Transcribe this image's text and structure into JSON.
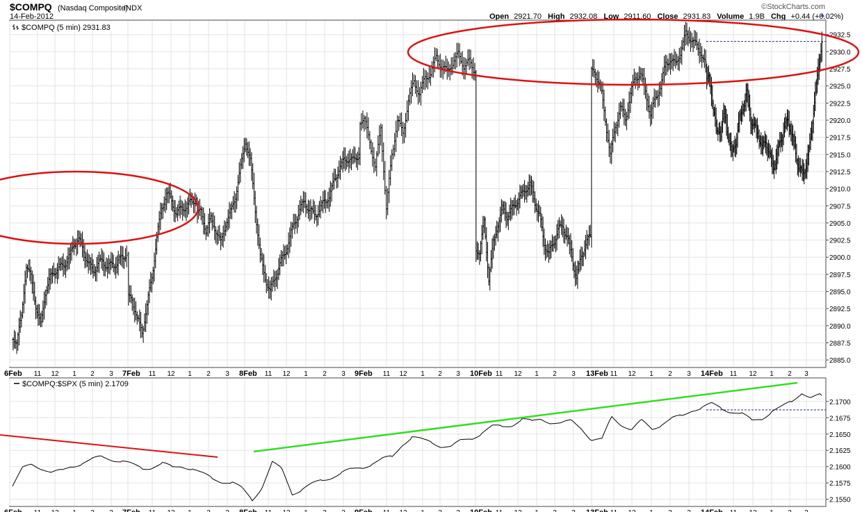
{
  "header": {
    "symbol": "$COMPQ",
    "name": "(Nasdaq Composite)",
    "exchange": "INDX",
    "date": "14-Feb-2012",
    "watermark": "©StockCharts.com",
    "open_label": "Open",
    "open_value": "2921.70",
    "high_label": "High",
    "high_value": "2932.08",
    "low_label": "Low",
    "low_value": "2911.60",
    "close_label": "Close",
    "close_value": "2931.83",
    "volume_label": "Volume",
    "volume_value": "1.9B",
    "chg_label": "Chg",
    "chg_value": "+0.44 (+0.02%)"
  },
  "colors": {
    "price_bars": "#000000",
    "grid": "#e3e3e3",
    "annotation_red": "#dd1111",
    "annotation_green": "#33dd22",
    "ref_line": "#1a2a88"
  },
  "chart_data": [
    {
      "type": "ohlc",
      "legend": "$COMPQ (5 min) 2931.83",
      "ylim": [
        2884,
        2934.5
      ],
      "yticks": [
        2885.0,
        2887.5,
        2890.0,
        2892.5,
        2895.0,
        2897.5,
        2900.0,
        2902.5,
        2905.0,
        2907.5,
        2910.0,
        2912.5,
        2915.0,
        2917.5,
        2920.0,
        2922.5,
        2925.0,
        2927.5,
        2930.0,
        2932.5
      ],
      "ytick_labels": [
        "2885.0",
        "2887.5",
        "2890.0",
        "2892.5",
        "2895.0",
        "2897.5",
        "2900.0",
        "2902.5",
        "2905.0",
        "2907.5",
        "2910.0",
        "2912.5",
        "2915.0",
        "2917.5",
        "2920.0",
        "2922.5",
        "2925.0",
        "2927.5",
        "2930.0",
        "2932.5"
      ],
      "xticks": [
        "6Feb",
        "11",
        "12",
        "1",
        "2",
        "3",
        "7Feb",
        "11",
        "12",
        "1",
        "2",
        "3",
        "8Feb",
        "11",
        "12",
        "1",
        "2",
        "3",
        "9Feb",
        "11",
        "12",
        "1",
        "2",
        "3",
        "10Feb",
        "11",
        "12",
        "1",
        "2",
        "3",
        "13Feb",
        "11",
        "12",
        "1",
        "2",
        "3",
        "14Feb",
        "11",
        "12",
        "1",
        "2",
        "3"
      ],
      "sessions": [
        {
          "day": "6Feb",
          "closes": [
            2888,
            2891,
            2899,
            2897,
            2893,
            2890,
            2895,
            2897,
            2898,
            2898.5,
            2899,
            2900,
            2902,
            2902.5,
            2901,
            2899,
            2898,
            2899,
            2899.5,
            2898.5,
            2899,
            2899,
            2900,
            2900.5
          ]
        },
        {
          "day": "7Feb",
          "closes": [
            2894,
            2891,
            2889,
            2893,
            2897,
            2903,
            2907,
            2909.5,
            2908,
            2906.5,
            2907,
            2907.5,
            2908,
            2908.5
          ]
        },
        {
          "day": "8Feb",
          "closes": [
            2906.5,
            2904,
            2905.5,
            2904,
            2902,
            2905,
            2906.5,
            2909,
            2913,
            2917,
            2914,
            2907,
            2900,
            2897,
            2895,
            2897,
            2899,
            2900.5,
            2903,
            2905,
            2907,
            2908,
            2907,
            2906,
            2907,
            2908,
            2909,
            2911,
            2913,
            2914,
            2914.5,
            2914,
            2915
          ]
        },
        {
          "day": "9Feb",
          "closes": [
            2920,
            2917,
            2913,
            2919,
            2907,
            2915,
            2920,
            2918,
            2923,
            2925.5,
            2924,
            2926,
            2927,
            2929,
            2928,
            2927,
            2928.5,
            2929.5,
            2928,
            2928.5,
            2927
          ]
        },
        {
          "day": "10Feb",
          "closes": [
            2901,
            2905,
            2897,
            2902,
            2905,
            2907,
            2906,
            2907,
            2908,
            2909,
            2910,
            2910.5,
            2908,
            2906,
            2902,
            2900.5,
            2902,
            2904,
            2904.5,
            2903,
            2900,
            2897,
            2900,
            2902,
            2903
          ]
        },
        {
          "day": "13Feb",
          "closes": [
            2927,
            2925,
            2920,
            2915,
            2919,
            2922,
            2920,
            2924,
            2926,
            2927,
            2924,
            2921,
            2923,
            2925,
            2928,
            2929,
            2928,
            2930,
            2932.5,
            2932,
            2931,
            2930,
            2928
          ]
        },
        {
          "day": "14Feb",
          "closes": [
            2926,
            2922,
            2918,
            2919,
            2921,
            2918,
            2915,
            2917,
            2920,
            2922,
            2924,
            2920,
            2919,
            2918,
            2916,
            2917,
            2915,
            2913,
            2915,
            2917,
            2919,
            2920,
            2918,
            2915,
            2913,
            2912,
            2914,
            2917,
            2923,
            2927,
            2931.83
          ]
        }
      ],
      "close_reference": 2931.5
    },
    {
      "type": "line",
      "legend": "$COMPQ:$SPX (5 min) 2.1709",
      "ylim": [
        2.154,
        2.1735
      ],
      "yticks": [
        2.155,
        2.1575,
        2.16,
        2.1625,
        2.165,
        2.1675,
        2.17
      ],
      "ytick_labels": [
        "2.1550",
        "2.1575",
        "2.1600",
        "2.1625",
        "2.1650",
        "2.1675",
        "2.1700"
      ],
      "xticks": [
        "6Feb",
        "11",
        "12",
        "1",
        "2",
        "3",
        "7Feb",
        "11",
        "12",
        "1",
        "2",
        "3",
        "8Feb",
        "11",
        "12",
        "1",
        "2",
        "3",
        "9Feb",
        "11",
        "12",
        "1",
        "2",
        "3",
        "10Feb",
        "11",
        "12",
        "1",
        "2",
        "3",
        "13Feb",
        "11",
        "12",
        "1",
        "2",
        "3",
        "14Feb",
        "11",
        "12",
        "1",
        "2",
        "3"
      ],
      "values": [
        2.157,
        2.1596,
        2.1604,
        2.1598,
        2.159,
        2.1593,
        2.1602,
        2.1606,
        2.161,
        2.1615,
        2.1612,
        2.1608,
        2.1602,
        2.1598,
        2.16,
        2.1604,
        2.1598,
        2.1602,
        2.1597,
        2.1588,
        2.1582,
        2.1578,
        2.1575,
        2.1565,
        2.155,
        2.157,
        2.1605,
        2.1595,
        2.156,
        2.1565,
        2.1572,
        2.158,
        2.1585,
        2.159,
        2.1595,
        2.16,
        2.1605,
        2.161,
        2.1615,
        2.1635,
        2.1645,
        2.164,
        2.1638,
        2.1632,
        2.163,
        2.164,
        2.1645,
        2.1652,
        2.166,
        2.1662,
        2.1665,
        2.1672,
        2.1668,
        2.1674,
        2.1668,
        2.1665,
        2.167,
        2.166,
        2.164,
        2.164,
        2.1678,
        2.1665,
        2.1655,
        2.167,
        2.166,
        2.1665,
        2.1672,
        2.1678,
        2.1688,
        2.169,
        2.1695,
        2.169,
        2.1685,
        2.168,
        2.167,
        2.1675,
        2.1685,
        2.169,
        2.17,
        2.1715,
        2.1705,
        2.1709
      ],
      "ref_value": 2.1687
    }
  ]
}
